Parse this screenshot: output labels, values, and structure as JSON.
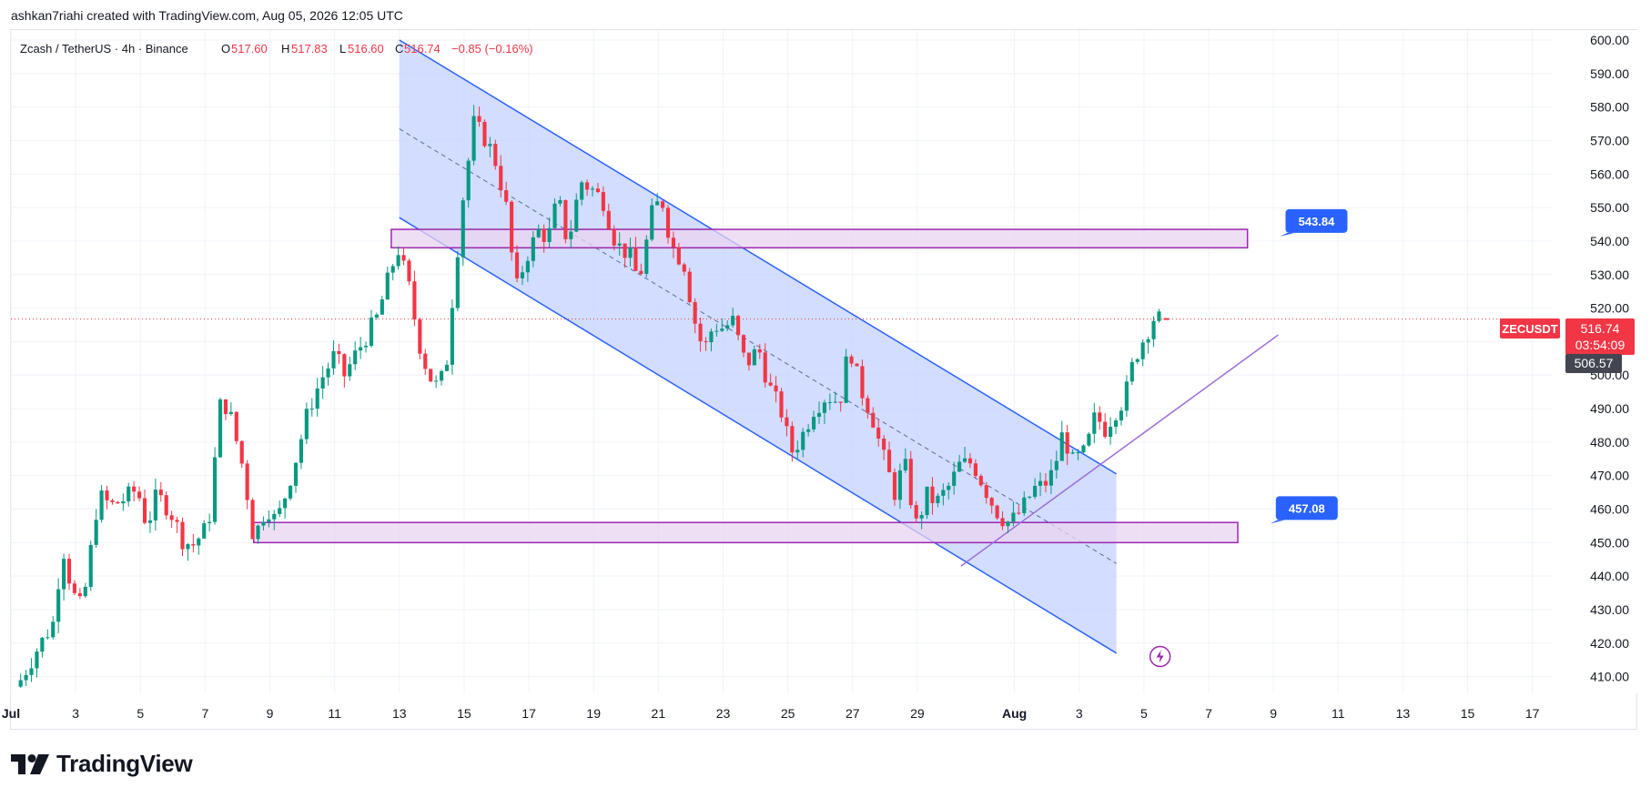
{
  "header": {
    "credit": "ashkan7riahi created with TradingView.com, Aug 05, 2026 12:05 UTC"
  },
  "footer": {
    "logo_text": "TradingView",
    "logo_mark": "tradingview-logo-mark"
  },
  "legend": {
    "symbol": "Zcash / TetherUS · 4h · Binance",
    "o_label": "O",
    "o_value": "517.60",
    "h_label": "H",
    "h_value": "517.83",
    "l_label": "L",
    "l_value": "516.60",
    "c_label": "C",
    "c_value": "516.74",
    "change": "−0.85 (−0.16%)"
  },
  "price_scale": {
    "ticker": "ZECUSDT",
    "last_price": "516.74",
    "countdown": "03:54:09",
    "secondary_price": "506.57"
  },
  "colors": {
    "up": "#089981",
    "down": "#f23645",
    "channel_line": "#2962ff",
    "channel_fill": "#c7d4ff",
    "zone_border": "#9c27b0",
    "zone_fill": "#e9d4f0",
    "trendline": "#9c6ddb",
    "label_bg": "#2962ff",
    "last_price_bg": "#f23645",
    "secondary_price_bg": "#434651"
  },
  "chart_data": {
    "type": "candlestick",
    "title": "Zcash / TetherUS · 4h · Binance",
    "ylim": [
      405,
      603
    ],
    "x_unit": "day index (Jul 1 = 1, Aug 1 = 32)",
    "xlim": [
      1,
      48.6
    ],
    "y_ticks": [
      "600.00",
      "590.00",
      "580.00",
      "570.00",
      "560.00",
      "550.00",
      "540.00",
      "530.00",
      "520.00",
      "510.00",
      "500.00",
      "490.00",
      "480.00",
      "470.00",
      "460.00",
      "450.00",
      "440.00",
      "430.00",
      "420.00",
      "410.00"
    ],
    "x_ticks": [
      {
        "label": "Jul",
        "day": 1
      },
      {
        "label": "3",
        "day": 3
      },
      {
        "label": "5",
        "day": 5
      },
      {
        "label": "7",
        "day": 7
      },
      {
        "label": "9",
        "day": 9
      },
      {
        "label": "11",
        "day": 11
      },
      {
        "label": "13",
        "day": 13
      },
      {
        "label": "15",
        "day": 15
      },
      {
        "label": "17",
        "day": 17
      },
      {
        "label": "19",
        "day": 19
      },
      {
        "label": "21",
        "day": 21
      },
      {
        "label": "23",
        "day": 23
      },
      {
        "label": "25",
        "day": 25
      },
      {
        "label": "27",
        "day": 27
      },
      {
        "label": "29",
        "day": 29
      },
      {
        "label": "Aug",
        "day": 32
      },
      {
        "label": "3",
        "day": 34
      },
      {
        "label": "5",
        "day": 36
      },
      {
        "label": "7",
        "day": 38
      },
      {
        "label": "9",
        "day": 40
      },
      {
        "label": "11",
        "day": 42
      },
      {
        "label": "13",
        "day": 44
      },
      {
        "label": "15",
        "day": 46
      },
      {
        "label": "17",
        "day": 48
      }
    ],
    "close_path": [
      [
        1.3,
        409
      ],
      [
        1.8,
        418
      ],
      [
        2.3,
        426
      ],
      [
        2.6,
        449
      ],
      [
        2.9,
        435
      ],
      [
        3.2,
        430
      ],
      [
        3.4,
        443
      ],
      [
        3.7,
        464
      ],
      [
        4.1,
        461
      ],
      [
        4.5,
        463
      ],
      [
        4.9,
        466
      ],
      [
        5.2,
        455
      ],
      [
        5.5,
        464
      ],
      [
        5.9,
        460
      ],
      [
        6.3,
        451
      ],
      [
        6.6,
        449
      ],
      [
        7.1,
        455
      ],
      [
        7.5,
        494
      ],
      [
        7.8,
        487
      ],
      [
        8.2,
        471
      ],
      [
        8.5,
        451
      ],
      [
        8.9,
        461
      ],
      [
        9.2,
        456
      ],
      [
        9.5,
        465
      ],
      [
        9.8,
        475
      ],
      [
        10.2,
        490
      ],
      [
        10.6,
        499
      ],
      [
        11,
        506
      ],
      [
        11.3,
        500
      ],
      [
        11.7,
        507
      ],
      [
        12,
        512
      ],
      [
        12.3,
        517
      ],
      [
        12.7,
        530
      ],
      [
        12.95,
        538
      ],
      [
        13.3,
        526
      ],
      [
        13.6,
        510
      ],
      [
        13.9,
        500
      ],
      [
        14.2,
        496
      ],
      [
        14.45,
        503
      ],
      [
        14.65,
        524
      ],
      [
        14.95,
        552
      ],
      [
        15.3,
        575
      ],
      [
        15.7,
        570
      ],
      [
        16,
        563
      ],
      [
        16.3,
        550
      ],
      [
        16.6,
        525
      ],
      [
        16.9,
        535
      ],
      [
        17.3,
        543
      ],
      [
        17.6,
        541
      ],
      [
        17.9,
        553
      ],
      [
        18.2,
        539
      ],
      [
        18.6,
        558
      ],
      [
        19.0,
        555
      ],
      [
        19.3,
        552
      ],
      [
        19.7,
        539
      ],
      [
        20.1,
        536
      ],
      [
        20.4,
        528
      ],
      [
        20.8,
        548
      ],
      [
        21.1,
        553
      ],
      [
        21.4,
        539
      ],
      [
        21.8,
        533
      ],
      [
        22.1,
        517
      ],
      [
        22.4,
        507
      ],
      [
        22.7,
        515
      ],
      [
        23.0,
        514
      ],
      [
        23.3,
        516
      ],
      [
        23.7,
        503
      ],
      [
        24.1,
        508
      ],
      [
        24.4,
        497
      ],
      [
        24.8,
        489
      ],
      [
        25.1,
        477
      ],
      [
        25.4,
        481
      ],
      [
        25.8,
        490
      ],
      [
        26.2,
        494
      ],
      [
        26.6,
        492
      ],
      [
        26.9,
        509
      ],
      [
        27.2,
        497
      ],
      [
        27.6,
        488
      ],
      [
        27.9,
        477
      ],
      [
        28.3,
        465
      ],
      [
        28.6,
        474
      ],
      [
        28.95,
        455
      ],
      [
        29.3,
        464
      ],
      [
        29.6,
        462
      ],
      [
        30.0,
        467
      ],
      [
        30.3,
        473
      ],
      [
        30.7,
        474
      ],
      [
        31.1,
        466
      ],
      [
        31.4,
        460
      ],
      [
        31.75,
        456
      ],
      [
        32.0,
        457
      ],
      [
        32.3,
        461
      ],
      [
        32.6,
        466
      ],
      [
        32.9,
        467
      ],
      [
        33.2,
        471
      ],
      [
        33.5,
        483
      ],
      [
        33.8,
        474
      ],
      [
        34.2,
        477
      ],
      [
        34.5,
        488
      ],
      [
        34.8,
        484
      ],
      [
        35.1,
        489
      ],
      [
        35.4,
        493
      ],
      [
        35.7,
        505
      ],
      [
        36.0,
        511
      ],
      [
        36.3,
        517
      ],
      [
        36.5,
        516.7
      ]
    ],
    "annotations": {
      "zones": [
        {
          "day_from": 12.75,
          "day_to": 39.2,
          "low": 538,
          "high": 543.5
        },
        {
          "day_from": 8.5,
          "day_to": 38.9,
          "low": 450,
          "high": 456
        }
      ],
      "channel": {
        "day_from": 13.0,
        "day_to": 35.15,
        "upper_from": 600,
        "upper_to": 470.5,
        "lower_from": 547,
        "lower_to": 417
      },
      "trendline": {
        "from": [
          30.35,
          443
        ],
        "to": [
          40.15,
          512
        ]
      },
      "labels": [
        {
          "text": "543.84",
          "day": 40.6,
          "price": 546
        },
        {
          "text": "457.08",
          "day": 40.3,
          "price": 460.3
        }
      ],
      "current_price_line": 516.74,
      "lightning_icon": {
        "day": 36.5,
        "price": 416
      }
    }
  }
}
